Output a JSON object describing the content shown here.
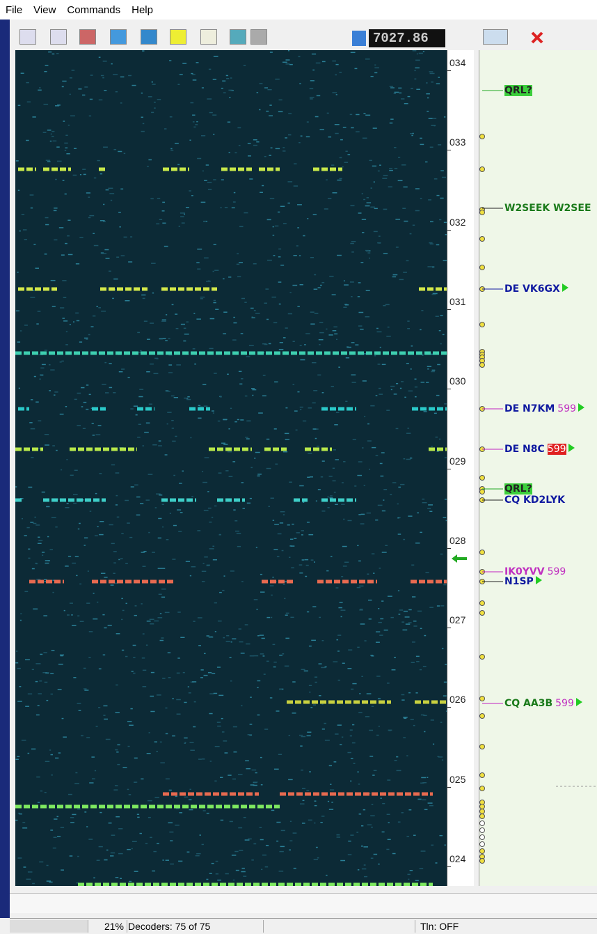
{
  "menu": [
    "File",
    "View",
    "Commands",
    "Help"
  ],
  "toolbar": {
    "frequency": "7027.86"
  },
  "scale": [
    "034",
    "033",
    "032",
    "031",
    "030",
    "029",
    "028",
    "027",
    "026",
    "025",
    "024"
  ],
  "spots": [
    {
      "text": "QRL?"
    },
    {
      "text": "W2SEEK W2SEE"
    },
    {
      "text": "DE VK6GX"
    },
    {
      "text": "DE N7KM",
      "report": "599"
    },
    {
      "text": "DE N8C",
      "report": "599"
    },
    {
      "text": "QRL?"
    },
    {
      "text": "CQ KD2LYK"
    },
    {
      "text": "IK0YVV",
      "report": "599"
    },
    {
      "text": "N1SP"
    },
    {
      "text": "CQ AA3B",
      "report": "599"
    }
  ],
  "status": {
    "load": "21%",
    "decoders": "Decoders: 75 of 75",
    "telnet": "Tln: OFF"
  }
}
